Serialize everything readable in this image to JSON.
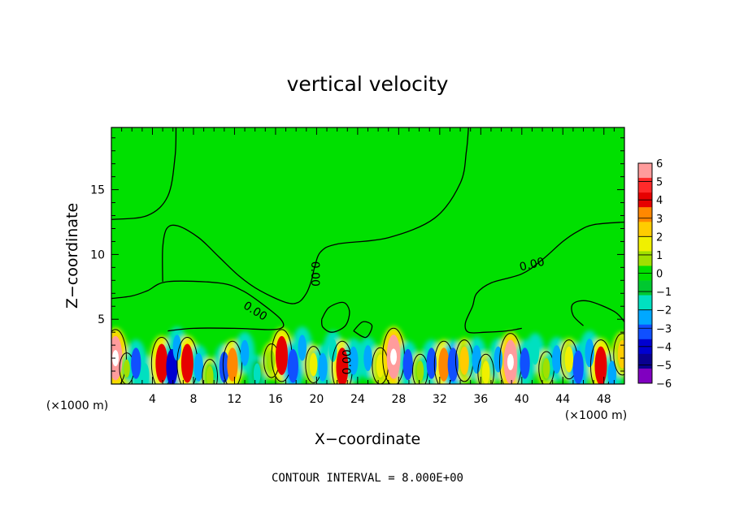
{
  "chart_data": {
    "type": "heatmap",
    "title": "vertical velocity",
    "xlabel": "X−coordinate",
    "ylabel": "Z−coordinate",
    "x_unit_left": "(×1000 m)",
    "x_unit_right": "(×1000 m)",
    "footer": "CONTOUR INTERVAL = 8.000E+00",
    "xlim": [
      0,
      50
    ],
    "ylim": [
      0,
      19.8
    ],
    "x_ticks": [
      4,
      8,
      12,
      16,
      20,
      24,
      28,
      32,
      36,
      40,
      44,
      48
    ],
    "y_ticks": [
      5,
      10,
      15
    ],
    "contour_label": "0.00",
    "colorbar": {
      "ticks": [
        "6",
        "5",
        "4",
        "3",
        "2",
        "1",
        "0",
        "−1",
        "−2",
        "−3",
        "−4",
        "−5",
        "−6"
      ],
      "colors": [
        "#ff9c9c",
        "#ff2a2a",
        "#e60000",
        "#ff8800",
        "#ffcc00",
        "#f0f000",
        "#a0e000",
        "#00e000",
        "#00c830",
        "#00e0c0",
        "#00a8ff",
        "#1050ff",
        "#0000d0",
        "#0a0090",
        "#8000c0"
      ]
    },
    "cells": [
      {
        "x": 0.4,
        "z": 2.0,
        "v": 6.0
      },
      {
        "x": 1.5,
        "z": 1.2,
        "v": 1.0
      },
      {
        "x": 2.4,
        "z": 1.6,
        "v": -3.5
      },
      {
        "x": 3.3,
        "z": 0.7,
        "v": -2.0
      },
      {
        "x": 4.9,
        "z": 1.6,
        "v": 5.0
      },
      {
        "x": 5.9,
        "z": 1.3,
        "v": -4.5
      },
      {
        "x": 6.4,
        "z": 2.8,
        "v": -2.5
      },
      {
        "x": 7.4,
        "z": 1.6,
        "v": 5.0
      },
      {
        "x": 8.5,
        "z": 1.3,
        "v": -3.0
      },
      {
        "x": 9.6,
        "z": 0.6,
        "v": 1.5
      },
      {
        "x": 11.0,
        "z": 1.3,
        "v": -3.5
      },
      {
        "x": 11.8,
        "z": 1.5,
        "v": 4.0
      },
      {
        "x": 13.0,
        "z": 2.4,
        "v": -2.5
      },
      {
        "x": 14.2,
        "z": 0.8,
        "v": -1.5
      },
      {
        "x": 15.6,
        "z": 1.8,
        "v": 1.5
      },
      {
        "x": 16.6,
        "z": 2.2,
        "v": 5.0
      },
      {
        "x": 17.7,
        "z": 1.4,
        "v": -4.0
      },
      {
        "x": 18.6,
        "z": 2.8,
        "v": -2.5
      },
      {
        "x": 19.7,
        "z": 1.5,
        "v": 2.0
      },
      {
        "x": 20.6,
        "z": 1.3,
        "v": -3.0
      },
      {
        "x": 21.6,
        "z": 2.6,
        "v": -2.0
      },
      {
        "x": 22.5,
        "z": 1.3,
        "v": 5.0
      },
      {
        "x": 23.6,
        "z": 1.8,
        "v": -3.0
      },
      {
        "x": 25.0,
        "z": 2.0,
        "v": -2.5
      },
      {
        "x": 26.2,
        "z": 1.4,
        "v": 2.0
      },
      {
        "x": 27.5,
        "z": 2.1,
        "v": 6.0
      },
      {
        "x": 28.9,
        "z": 1.5,
        "v": -3.5
      },
      {
        "x": 30.1,
        "z": 1.0,
        "v": 1.5
      },
      {
        "x": 31.2,
        "z": 1.6,
        "v": -3.5
      },
      {
        "x": 32.4,
        "z": 1.5,
        "v": 4.0
      },
      {
        "x": 33.3,
        "z": 1.5,
        "v": -4.0
      },
      {
        "x": 34.4,
        "z": 1.8,
        "v": 3.0
      },
      {
        "x": 35.6,
        "z": 1.9,
        "v": -3.0
      },
      {
        "x": 36.5,
        "z": 0.9,
        "v": 2.0
      },
      {
        "x": 37.7,
        "z": 1.9,
        "v": -2.5
      },
      {
        "x": 38.9,
        "z": 1.7,
        "v": 6.0
      },
      {
        "x": 40.3,
        "z": 1.6,
        "v": -3.5
      },
      {
        "x": 41.3,
        "z": 2.4,
        "v": -2.0
      },
      {
        "x": 42.4,
        "z": 1.2,
        "v": 1.5
      },
      {
        "x": 43.4,
        "z": 1.9,
        "v": -3.0
      },
      {
        "x": 44.6,
        "z": 1.9,
        "v": 2.5
      },
      {
        "x": 45.5,
        "z": 1.3,
        "v": -4.0
      },
      {
        "x": 46.6,
        "z": 2.4,
        "v": -3.0
      },
      {
        "x": 47.7,
        "z": 1.4,
        "v": 5.0
      },
      {
        "x": 48.8,
        "z": 0.8,
        "v": -2.5
      },
      {
        "x": 49.8,
        "z": 2.3,
        "v": 3.0
      }
    ],
    "contours": [
      {
        "name": "upper-left",
        "points": [
          [
            0,
            12.7
          ],
          [
            3.5,
            13.0
          ],
          [
            5.5,
            14.5
          ],
          [
            6.2,
            17.5
          ],
          [
            6.3,
            19.8
          ]
        ]
      },
      {
        "name": "left-mid",
        "points": [
          [
            0,
            6.6
          ],
          [
            2.0,
            6.8
          ],
          [
            3.5,
            7.2
          ],
          [
            5.5,
            7.9
          ],
          [
            10.5,
            7.8
          ],
          [
            12.8,
            7.2
          ],
          [
            15.0,
            6.0
          ],
          [
            16.5,
            5.0
          ],
          [
            16.7,
            4.4
          ],
          [
            15.5,
            4.2
          ],
          [
            12.0,
            4.3
          ],
          [
            8.0,
            4.3
          ],
          [
            5.5,
            4.1
          ]
        ]
      },
      {
        "name": "center-loop",
        "points": [
          [
            5.0,
            7.9
          ],
          [
            5.0,
            10.5
          ],
          [
            5.4,
            12.0
          ],
          [
            6.5,
            12.2
          ],
          [
            8.5,
            11.3
          ],
          [
            10.5,
            9.8
          ],
          [
            12.5,
            8.3
          ],
          [
            14.5,
            7.2
          ],
          [
            17.0,
            6.3
          ],
          [
            18.2,
            6.3
          ],
          [
            19.0,
            7.0
          ],
          [
            19.5,
            8.0
          ],
          [
            19.8,
            9.0
          ],
          [
            20.4,
            10.2
          ],
          [
            22.0,
            10.8
          ],
          [
            27.0,
            11.3
          ],
          [
            31.5,
            12.8
          ],
          [
            34.0,
            15.5
          ],
          [
            34.6,
            18.0
          ],
          [
            34.8,
            19.8
          ]
        ]
      },
      {
        "name": "right-mid",
        "points": [
          [
            50,
            12.5
          ],
          [
            47.0,
            12.3
          ],
          [
            45.5,
            11.8
          ],
          [
            44.0,
            11.0
          ],
          [
            42.0,
            9.6
          ],
          [
            40.0,
            8.5
          ],
          [
            37.0,
            7.8
          ],
          [
            35.6,
            7.0
          ],
          [
            35.2,
            6.0
          ],
          [
            34.5,
            4.7
          ],
          [
            34.8,
            4.0
          ],
          [
            36.5,
            4.0
          ],
          [
            38.5,
            4.1
          ],
          [
            40.0,
            4.3
          ]
        ]
      },
      {
        "name": "right-loop",
        "points": [
          [
            46.0,
            4.5
          ],
          [
            45.0,
            5.3
          ],
          [
            45.0,
            6.2
          ],
          [
            46.5,
            6.4
          ],
          [
            49.0,
            5.6
          ],
          [
            50,
            4.8
          ]
        ]
      },
      {
        "name": "center-blob",
        "points": [
          [
            20.5,
            5.0
          ],
          [
            21.2,
            5.9
          ],
          [
            22.6,
            6.3
          ],
          [
            23.2,
            5.6
          ],
          [
            22.8,
            4.5
          ],
          [
            21.5,
            4.0
          ],
          [
            20.6,
            4.4
          ],
          [
            20.5,
            5.0
          ]
        ]
      },
      {
        "name": "center-blob-2",
        "points": [
          [
            23.6,
            4.1
          ],
          [
            24.5,
            4.8
          ],
          [
            25.4,
            4.5
          ],
          [
            24.8,
            3.6
          ],
          [
            23.6,
            4.1
          ]
        ]
      }
    ]
  }
}
